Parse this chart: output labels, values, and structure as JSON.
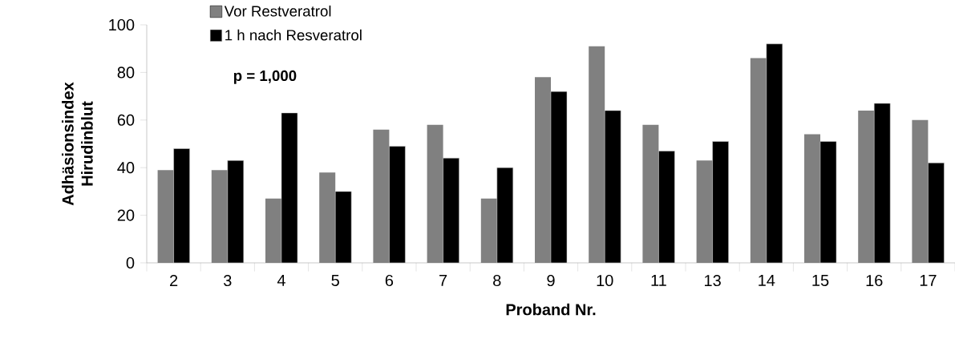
{
  "chart_data": {
    "type": "bar",
    "xlabel": "Proband Nr.",
    "ylabel": "Adhäsionsindex Hirudinblut",
    "categories": [
      "2",
      "3",
      "4",
      "5",
      "6",
      "7",
      "8",
      "9",
      "10",
      "11",
      "13",
      "14",
      "15",
      "16",
      "17"
    ],
    "series": [
      {
        "name": "Vor Restveratrol",
        "color": "#808080",
        "values": [
          39,
          39,
          27,
          38,
          56,
          58,
          27,
          78,
          91,
          58,
          43,
          86,
          54,
          64,
          60
        ]
      },
      {
        "name": "1 h nach Resveratrol",
        "color": "#000000",
        "values": [
          48,
          43,
          63,
          30,
          49,
          44,
          40,
          72,
          64,
          47,
          51,
          92,
          51,
          67,
          42
        ]
      }
    ],
    "ylim": [
      0,
      100
    ],
    "yticks": [
      0,
      20,
      40,
      60,
      80,
      100
    ],
    "annotations": [
      "p = 1,000"
    ],
    "legend": "top left",
    "grid": false
  }
}
